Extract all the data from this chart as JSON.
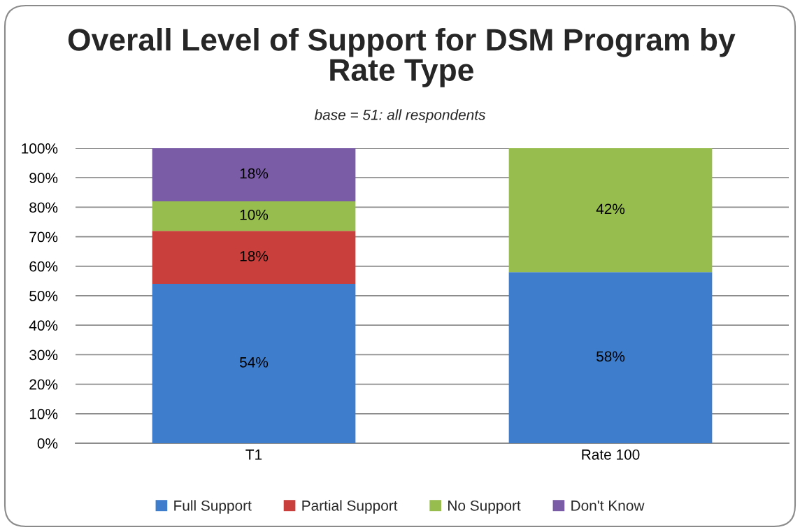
{
  "chart_data": {
    "type": "bar",
    "title": "Overall Level of Support for DSM Program by Rate Type",
    "subtitle": "base = 51: all respondents",
    "categories": [
      "T1",
      "Rate 100"
    ],
    "stacked": true,
    "series": [
      {
        "name": "Full Support",
        "color": "#3d7dcc",
        "values": [
          54,
          58
        ],
        "value_labels": [
          "54%",
          "58%"
        ]
      },
      {
        "name": "Partial Support",
        "color": "#c83f3c",
        "values": [
          18,
          null
        ],
        "value_labels": [
          "18%",
          null
        ]
      },
      {
        "name": "No Support",
        "color": "#98bd4f",
        "values": [
          10,
          42
        ],
        "value_labels": [
          "10%",
          "42%"
        ]
      },
      {
        "name": "Don't Know",
        "color": "#7a5ba6",
        "values": [
          18,
          null
        ],
        "value_labels": [
          "18%",
          null
        ]
      }
    ],
    "ylim": [
      0,
      100
    ],
    "yticks": [
      {
        "value": 0,
        "label": "0%"
      },
      {
        "value": 10,
        "label": "10%"
      },
      {
        "value": 20,
        "label": "20%"
      },
      {
        "value": 30,
        "label": "30%"
      },
      {
        "value": 40,
        "label": "40%"
      },
      {
        "value": 50,
        "label": "50%"
      },
      {
        "value": 60,
        "label": "60%"
      },
      {
        "value": 70,
        "label": "70%"
      },
      {
        "value": 80,
        "label": "80%"
      },
      {
        "value": 90,
        "label": "90%"
      },
      {
        "value": 100,
        "label": "100%"
      }
    ],
    "grid": "y",
    "legend": "bottom"
  }
}
